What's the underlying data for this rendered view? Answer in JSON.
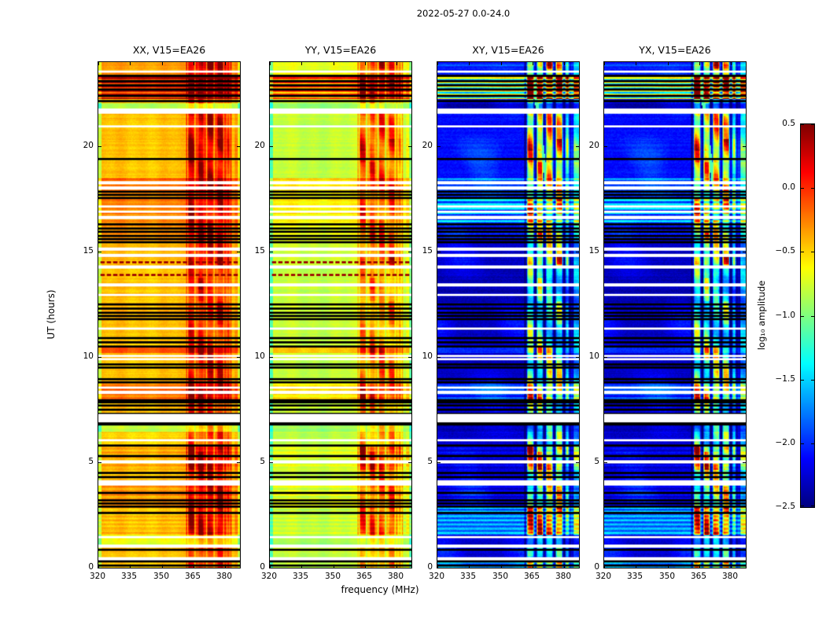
{
  "figure": {
    "title": "2022-05-27 0.0-24.0"
  },
  "chart_data": {
    "type": "heatmap",
    "title": "2022-05-27 0.0-24.0",
    "xlabel": "frequency (MHz)",
    "ylabel": "UT (hours)",
    "x_ticks": [
      320,
      335,
      350,
      365,
      380
    ],
    "y_ticks": [
      0,
      5,
      10,
      15,
      20
    ],
    "x_range": [
      320,
      387
    ],
    "y_range": [
      0,
      24
    ],
    "value_range": [
      -2.5,
      0.5
    ],
    "colormap": "jet",
    "grid": false,
    "colorbar": {
      "label": "log₁₀ amplitude",
      "ticks": [
        "0.5",
        "0.0",
        "−0.5",
        "−1.0",
        "−1.5",
        "−2.0",
        "−2.5"
      ],
      "values": [
        0.5,
        0.0,
        -0.5,
        -1.0,
        -1.5,
        -2.0,
        -2.5
      ]
    },
    "panels": [
      {
        "label": "XX, V15=EA26",
        "field": "xx",
        "kind": "par",
        "seed": 1
      },
      {
        "label": "YY, V15=EA26",
        "field": "yy",
        "kind": "par",
        "seed": 2
      },
      {
        "label": "XY, V15=EA26",
        "field": "cross",
        "kind": "cross",
        "seed": 3
      },
      {
        "label": "YX, V15=EA26",
        "field": "cross",
        "kind": "cross",
        "seed": 4
      }
    ],
    "segments": [
      [
        0.0,
        0.35,
        -0.45,
        -0.8,
        -1.85,
        0.75,
        0.0,
        0.2
      ],
      [
        0.35,
        0.5,
        -0.45,
        -0.8,
        -2.2,
        0.5,
        0.0,
        0.0
      ],
      [
        0.5,
        1.05,
        -0.45,
        -0.8,
        -2.25,
        0.5,
        0.0,
        0.0
      ],
      [
        1.05,
        1.55,
        -0.7,
        -0.9,
        -2.3,
        0.35,
        0.0,
        0.0
      ],
      [
        1.55,
        2.85,
        -0.45,
        -0.8,
        -1.75,
        0.85,
        0.06,
        0.22
      ],
      [
        2.85,
        3.25,
        -0.3,
        -0.7,
        -2.2,
        0.6,
        0.0,
        0.0
      ],
      [
        3.25,
        4.0,
        -0.35,
        -0.75,
        -2.25,
        0.65,
        0.08,
        0.1
      ],
      [
        4.0,
        4.2,
        -0.45,
        -0.8,
        -2.25,
        0.6,
        0.0,
        0.0
      ],
      [
        4.2,
        4.65,
        -0.45,
        -0.8,
        -2.25,
        0.7,
        0.0,
        0.0
      ],
      [
        4.65,
        5.75,
        -0.4,
        -0.75,
        -2.25,
        1.0,
        0.08,
        0.12
      ],
      [
        5.75,
        6.45,
        -0.5,
        -0.82,
        -2.3,
        0.55,
        0.0,
        0.0
      ],
      [
        6.45,
        6.95,
        -0.8,
        -0.92,
        -2.35,
        0.45,
        0.0,
        0.0
      ],
      [
        6.95,
        7.3,
        -0.45,
        -0.8,
        -2.3,
        0.55,
        0.0,
        0.0
      ],
      [
        7.3,
        8.0,
        -0.42,
        -0.78,
        -2.25,
        0.6,
        0.0,
        0.0
      ],
      [
        8.0,
        8.8,
        -0.25,
        -0.6,
        -2.05,
        0.8,
        0.06,
        0.15
      ],
      [
        8.8,
        10.0,
        -0.45,
        -0.8,
        -2.3,
        0.7,
        0.0,
        0.0
      ],
      [
        10.0,
        10.18,
        -0.45,
        -0.8,
        -2.3,
        0.6,
        0.0,
        0.0
      ],
      [
        10.18,
        10.5,
        -0.1,
        -0.45,
        -2.0,
        0.65,
        0.0,
        0.0
      ],
      [
        10.5,
        11.0,
        -0.45,
        -0.8,
        -2.3,
        0.6,
        0.0,
        0.0
      ],
      [
        11.0,
        11.95,
        -0.45,
        -0.8,
        -2.32,
        0.55,
        0.0,
        0.0
      ],
      [
        11.95,
        12.35,
        -0.4,
        -0.78,
        -2.3,
        0.6,
        0.0,
        0.0
      ],
      [
        12.35,
        13.9,
        -0.45,
        -0.8,
        -2.35,
        0.6,
        0.0,
        0.0
      ],
      [
        13.9,
        14.4,
        -0.45,
        -0.8,
        -2.33,
        0.65,
        0.0,
        0.0
      ],
      [
        14.4,
        15.4,
        -0.42,
        -0.78,
        -2.3,
        0.85,
        0.0,
        0.0
      ],
      [
        15.4,
        16.35,
        -0.3,
        -0.68,
        -2.2,
        0.7,
        0.0,
        0.15
      ],
      [
        16.35,
        17.5,
        -0.28,
        -0.62,
        -1.8,
        0.6,
        0.05,
        0.35
      ],
      [
        17.5,
        17.9,
        -0.3,
        -0.65,
        -2.0,
        0.6,
        0.0,
        0.0
      ],
      [
        17.9,
        18.5,
        -0.2,
        -0.55,
        -1.85,
        0.75,
        0.06,
        0.18
      ],
      [
        18.5,
        21.55,
        -0.45,
        -0.8,
        -2.1,
        0.85,
        0.0,
        0.0
      ],
      [
        21.55,
        21.8,
        -0.45,
        -0.8,
        -2.2,
        0.4,
        0.0,
        0.0
      ],
      [
        21.8,
        22.05,
        -0.85,
        -0.95,
        -2.4,
        0.3,
        0.0,
        0.0
      ],
      [
        22.05,
        22.25,
        -0.4,
        -0.75,
        -2.2,
        0.5,
        0.0,
        0.0
      ],
      [
        22.25,
        23.3,
        0.05,
        -0.28,
        -1.25,
        0.9,
        0.32,
        0.55
      ],
      [
        23.3,
        23.5,
        -0.3,
        -0.65,
        -2.05,
        0.7,
        0.0,
        0.0
      ],
      [
        23.5,
        23.7,
        -0.35,
        -0.7,
        -2.05,
        0.8,
        0.0,
        0.0
      ],
      [
        23.7,
        24.0,
        -0.35,
        -0.7,
        -2.0,
        1.0,
        0.0,
        0.1
      ]
    ],
    "black_rows": [
      [
        0.12,
        0.06
      ],
      [
        0.3,
        0.06
      ],
      [
        0.85,
        0.06
      ],
      [
        2.62,
        0.06
      ],
      [
        2.9,
        0.06
      ],
      [
        3.05,
        0.06
      ],
      [
        3.2,
        0.06
      ],
      [
        3.55,
        0.06
      ],
      [
        4.32,
        0.06
      ],
      [
        4.5,
        0.06
      ],
      [
        5.3,
        0.06
      ],
      [
        5.78,
        0.06
      ],
      [
        6.78,
        0.05
      ],
      [
        6.9,
        0.06
      ],
      [
        7.32,
        0.06
      ],
      [
        7.52,
        0.06
      ],
      [
        7.7,
        0.06
      ],
      [
        7.85,
        0.06
      ],
      [
        7.97,
        0.06
      ],
      [
        8.78,
        0.06
      ],
      [
        8.97,
        0.06
      ],
      [
        9.52,
        0.06
      ],
      [
        9.67,
        0.06
      ],
      [
        10.48,
        0.06
      ],
      [
        10.72,
        0.06
      ],
      [
        10.88,
        0.06
      ],
      [
        11.82,
        0.06
      ],
      [
        11.97,
        0.06
      ],
      [
        12.12,
        0.06
      ],
      [
        12.28,
        0.06
      ],
      [
        12.52,
        0.06
      ],
      [
        15.45,
        0.08
      ],
      [
        15.6,
        0.08
      ],
      [
        15.75,
        0.06
      ],
      [
        15.95,
        0.06
      ],
      [
        16.12,
        0.06
      ],
      [
        16.3,
        0.06
      ],
      [
        17.55,
        0.06
      ],
      [
        17.7,
        0.06
      ],
      [
        17.85,
        0.06
      ],
      [
        19.42,
        0.06
      ],
      [
        22.15,
        0.06
      ],
      [
        22.42,
        0.06
      ],
      [
        22.68,
        0.06
      ],
      [
        22.92,
        0.06
      ],
      [
        23.12,
        0.06
      ],
      [
        23.35,
        0.08
      ]
    ],
    "white_rows": [
      [
        0.42,
        0.07
      ],
      [
        1.02,
        0.07
      ],
      [
        1.45,
        0.07
      ],
      [
        3.95,
        0.07
      ],
      [
        4.08,
        0.07
      ],
      [
        5.02,
        0.07
      ],
      [
        6.05,
        0.07
      ],
      [
        6.98,
        0.07
      ],
      [
        7.1,
        0.06
      ],
      [
        7.22,
        0.07
      ],
      [
        8.32,
        0.07
      ],
      [
        8.56,
        0.07
      ],
      [
        9.9,
        0.07
      ],
      [
        10.05,
        0.1
      ],
      [
        11.35,
        0.07
      ],
      [
        12.95,
        0.07
      ],
      [
        13.42,
        0.07
      ],
      [
        14.28,
        0.1
      ],
      [
        14.82,
        0.07
      ],
      [
        15.12,
        0.07
      ],
      [
        16.62,
        0.07
      ],
      [
        16.9,
        0.07
      ],
      [
        17.15,
        0.07
      ],
      [
        18.02,
        0.07
      ],
      [
        18.28,
        0.07
      ],
      [
        20.95,
        0.07
      ],
      [
        21.6,
        0.08
      ],
      [
        21.72,
        0.08
      ],
      [
        23.55,
        0.1
      ]
    ],
    "dotted_rows_par": [
      13.88,
      14.5
    ],
    "dotted_rows_cross": [
      15.95
    ],
    "rfi": {
      "band": [
        361.7,
        383.0
      ],
      "columns": [
        [
          362.2,
          365.8
        ],
        [
          366.8,
          370.2
        ],
        [
          371.2,
          374.8
        ],
        [
          375.8,
          379.4
        ],
        [
          380.4,
          382.5
        ]
      ],
      "column_weights": [
        1,
        1,
        1,
        1,
        0.55
      ],
      "edge_column": [
        384.3,
        387.0
      ],
      "gap_level_par": 0.45,
      "gap_drop_cross": 0.25,
      "dark_line_cross": [
        360.9,
        361.9
      ]
    }
  }
}
